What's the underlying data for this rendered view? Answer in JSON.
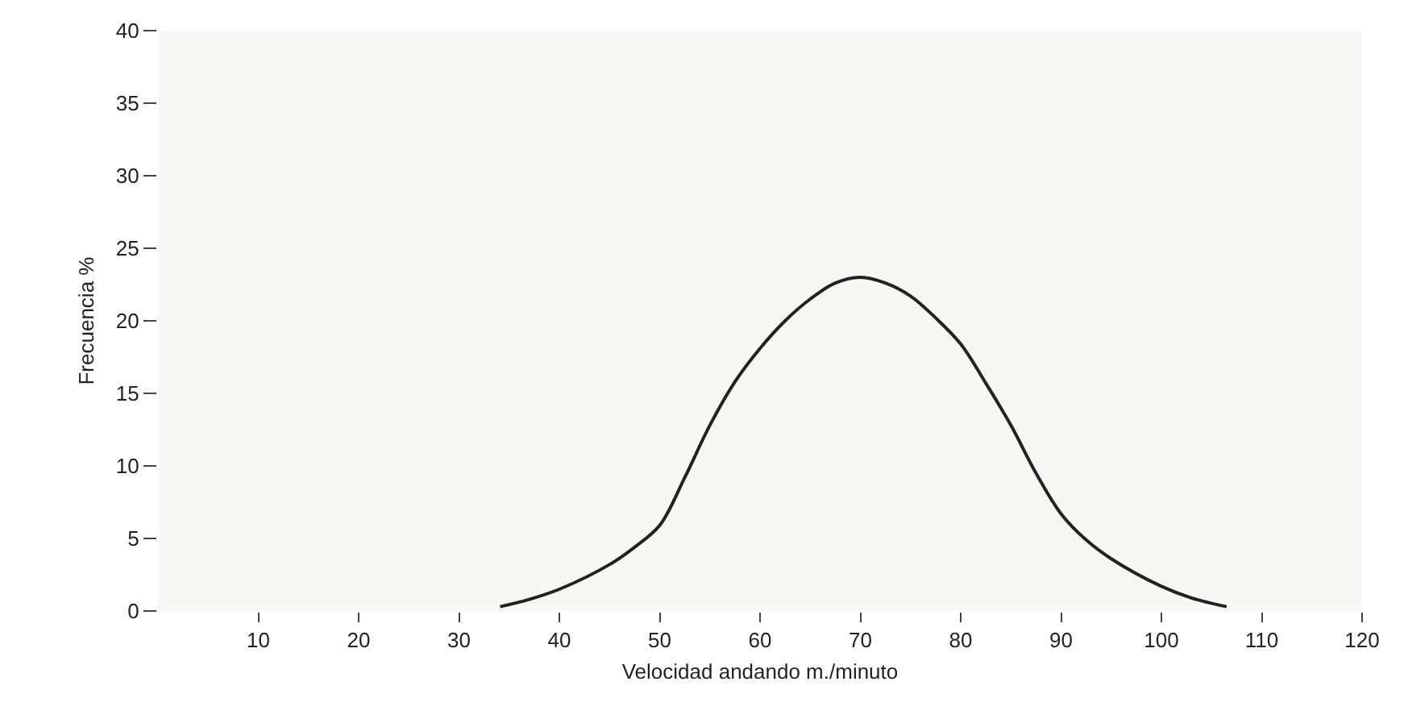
{
  "chart_data": {
    "type": "line",
    "xlabel": "Velocidad andando m./minuto",
    "ylabel": "Frecuencia %",
    "x": [
      34.1,
      37,
      40,
      45,
      47.5,
      50,
      52.5,
      55,
      57.5,
      60,
      62.5,
      65,
      67.5,
      70,
      72.5,
      75,
      77.5,
      80,
      82.5,
      85,
      87.5,
      90,
      92.5,
      95,
      100,
      103,
      106.5
    ],
    "series": [
      {
        "color": "#222222",
        "values": [
          0.3,
          0.8,
          1.5,
          3.2,
          4.4,
          5.9,
          9.2,
          12.8,
          15.8,
          18.1,
          20.0,
          21.5,
          22.6,
          23.0,
          22.6,
          21.7,
          20.2,
          18.4,
          15.7,
          12.8,
          9.5,
          6.7,
          4.9,
          3.6,
          1.7,
          0.9,
          0.3
        ]
      }
    ],
    "xlim": [
      0,
      120
    ],
    "xticks": [
      10,
      20,
      30,
      40,
      50,
      60,
      70,
      80,
      90,
      100,
      110,
      120
    ],
    "ylim": [
      0,
      40
    ],
    "yticks": [
      0,
      5,
      10,
      15,
      20,
      25,
      30,
      35,
      40
    ],
    "grid": false,
    "marker": "none",
    "line_style": "solid"
  }
}
